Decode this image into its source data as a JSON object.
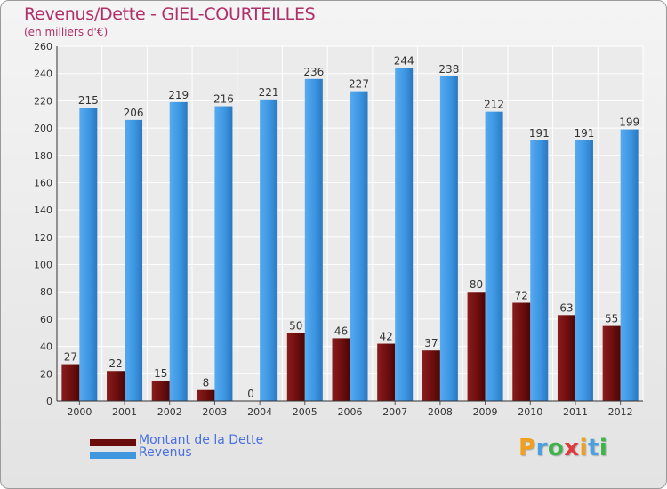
{
  "chart_data": {
    "type": "bar",
    "title": "Revenus/Dette - GIEL-COURTEILLES",
    "subtitle": "(en milliers d'€)",
    "categories": [
      "2000",
      "2001",
      "2002",
      "2003",
      "2004",
      "2005",
      "2006",
      "2007",
      "2008",
      "2009",
      "2010",
      "2011",
      "2012"
    ],
    "series": [
      {
        "name": "Montant de la Dette",
        "color": "#7a1010",
        "values": [
          27,
          22,
          15,
          8,
          0,
          50,
          46,
          42,
          37,
          80,
          72,
          63,
          55
        ]
      },
      {
        "name": "Revenus",
        "color": "#3f97e0",
        "values": [
          215,
          206,
          219,
          216,
          221,
          236,
          227,
          244,
          238,
          212,
          191,
          191,
          199
        ]
      }
    ],
    "ylim": [
      0,
      260
    ],
    "yticks": [
      0,
      20,
      40,
      60,
      80,
      100,
      120,
      140,
      160,
      180,
      200,
      220,
      240,
      260
    ],
    "grid": true,
    "legend_position": "bottom-left"
  },
  "legend": {
    "debt_label": "Montant de la Dette",
    "revenue_label": "Revenus"
  },
  "logo": {
    "letters": [
      "P",
      "r",
      "o",
      "x",
      "i",
      "t",
      "i"
    ],
    "colors": [
      "#f0a020",
      "#4aa0e0",
      "#3cb44a",
      "#e03a3a",
      "#f0a020",
      "#4aa0e0",
      "#3cb44a"
    ]
  }
}
